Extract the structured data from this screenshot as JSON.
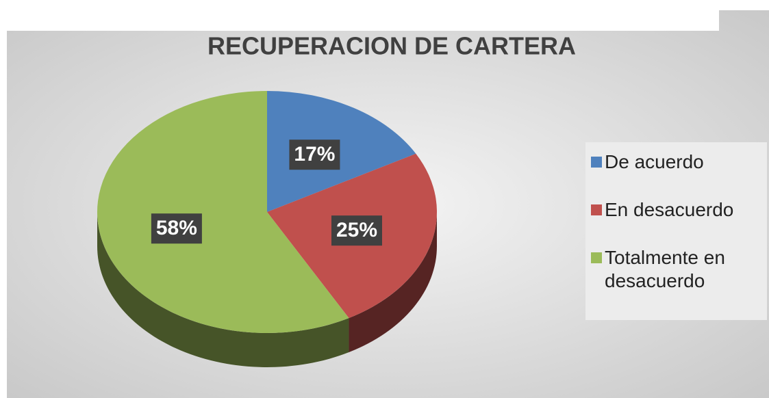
{
  "chart_data": {
    "type": "pie",
    "title": "RECUPERACION DE CARTERA",
    "categories": [
      "De acuerdo",
      "En desacuerdo",
      "Totalmente en desacuerdo"
    ],
    "values": [
      17,
      25,
      58
    ],
    "value_labels": [
      "17%",
      "25%",
      "58%"
    ],
    "colors": [
      "#4f81bd",
      "#c0504d",
      "#9bbb59"
    ],
    "legend": "right"
  }
}
